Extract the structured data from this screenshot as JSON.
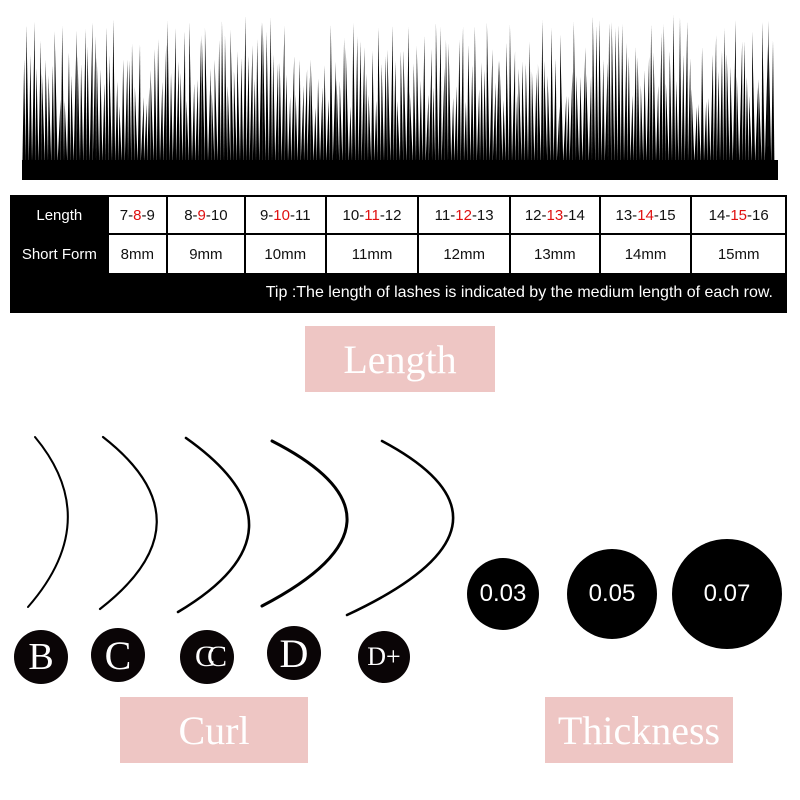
{
  "table": {
    "row_headers": [
      "Length",
      "Short Form"
    ],
    "lengths": [
      {
        "pre": "7-",
        "mid": "8",
        "post": "-9"
      },
      {
        "pre": "8-",
        "mid": "9",
        "post": "-10"
      },
      {
        "pre": "9-",
        "mid": "10",
        "post": "-11"
      },
      {
        "pre": "10-",
        "mid": "11",
        "post": "-12"
      },
      {
        "pre": "11-",
        "mid": "12",
        "post": "-13"
      },
      {
        "pre": "12-",
        "mid": "13",
        "post": "-14"
      },
      {
        "pre": "13-",
        "mid": "14",
        "post": "-15"
      },
      {
        "pre": "14-",
        "mid": "15",
        "post": "-16"
      }
    ],
    "short_forms": [
      "8mm",
      "9mm",
      "10mm",
      "11mm",
      "12mm",
      "13mm",
      "14mm",
      "15mm"
    ],
    "tip": "Tip :The length of lashes is indicated by the medium length of each row."
  },
  "labels": {
    "length": "Length",
    "curl": "Curl",
    "thickness": "Thickness"
  },
  "curls": [
    "B",
    "C",
    "CC",
    "D",
    "D+"
  ],
  "thickness": [
    "0.03",
    "0.05",
    "0.07"
  ],
  "colors": {
    "pink": "#eec6c4",
    "highlight": "#e01010",
    "black": "#000000"
  }
}
